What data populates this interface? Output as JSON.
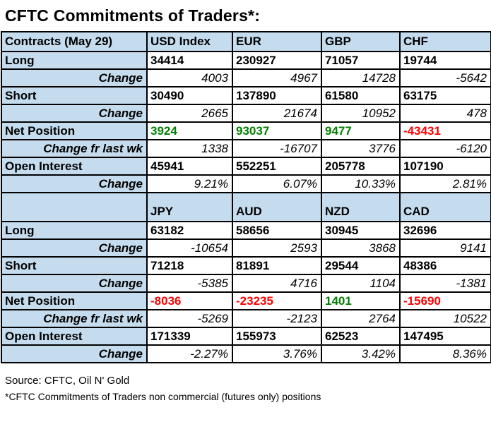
{
  "title": "CFTC Commitments of Traders*:",
  "colors": {
    "header_bg": "#c5dcee",
    "positive": "#008000",
    "negative": "#ff0000",
    "border": "#000000",
    "text": "#000000"
  },
  "sections": [
    {
      "columns": [
        "Contracts (May 29)",
        "USD Index",
        "EUR",
        "GBP",
        "CHF"
      ],
      "rows": [
        {
          "label": "Long",
          "type": "value",
          "values": [
            "34414",
            "230927",
            "71057",
            "19744"
          ]
        },
        {
          "label": "Change",
          "type": "change",
          "values": [
            "4003",
            "4967",
            "14728",
            "-5642"
          ]
        },
        {
          "label": "Short",
          "type": "value",
          "values": [
            "30490",
            "137890",
            "61580",
            "63175"
          ]
        },
        {
          "label": "Change",
          "type": "change",
          "values": [
            "2665",
            "21674",
            "10952",
            "478"
          ]
        },
        {
          "label": "Net Position",
          "type": "net",
          "values": [
            "3924",
            "93037",
            "9477",
            "-43431"
          ]
        },
        {
          "label": "Change fr last wk",
          "type": "change",
          "values": [
            "1338",
            "-16707",
            "3776",
            "-6120"
          ]
        },
        {
          "label": "Open Interest",
          "type": "value",
          "values": [
            "45941",
            "552251",
            "205778",
            "107190"
          ]
        },
        {
          "label": "Change",
          "type": "change",
          "values": [
            "9.21%",
            "6.07%",
            "10.33%",
            "2.81%"
          ]
        }
      ]
    },
    {
      "columns": [
        "",
        "JPY",
        "AUD",
        "NZD",
        "CAD"
      ],
      "rows": [
        {
          "label": "Long",
          "type": "value",
          "values": [
            "63182",
            "58656",
            "30945",
            "32696"
          ]
        },
        {
          "label": "Change",
          "type": "change",
          "values": [
            "-10654",
            "2593",
            "3868",
            "9141"
          ]
        },
        {
          "label": "Short",
          "type": "value",
          "values": [
            "71218",
            "81891",
            "29544",
            "48386"
          ]
        },
        {
          "label": "Change",
          "type": "change",
          "values": [
            "-5385",
            "4716",
            "1104",
            "-1381"
          ]
        },
        {
          "label": "Net Position",
          "type": "net",
          "values": [
            "-8036",
            "-23235",
            "1401",
            "-15690"
          ]
        },
        {
          "label": "Change fr last wk",
          "type": "change",
          "values": [
            "-5269",
            "-2123",
            "2764",
            "10522"
          ]
        },
        {
          "label": "Open Interest",
          "type": "value",
          "values": [
            "171339",
            "155973",
            "62523",
            "147495"
          ]
        },
        {
          "label": "Change",
          "type": "change",
          "values": [
            "-2.27%",
            "3.76%",
            "3.42%",
            "8.36%"
          ]
        }
      ]
    }
  ],
  "footer": {
    "source": "Source: CFTC, Oil N' Gold",
    "note": "*CFTC Commitments of Traders non commercial (futures only) positions"
  }
}
